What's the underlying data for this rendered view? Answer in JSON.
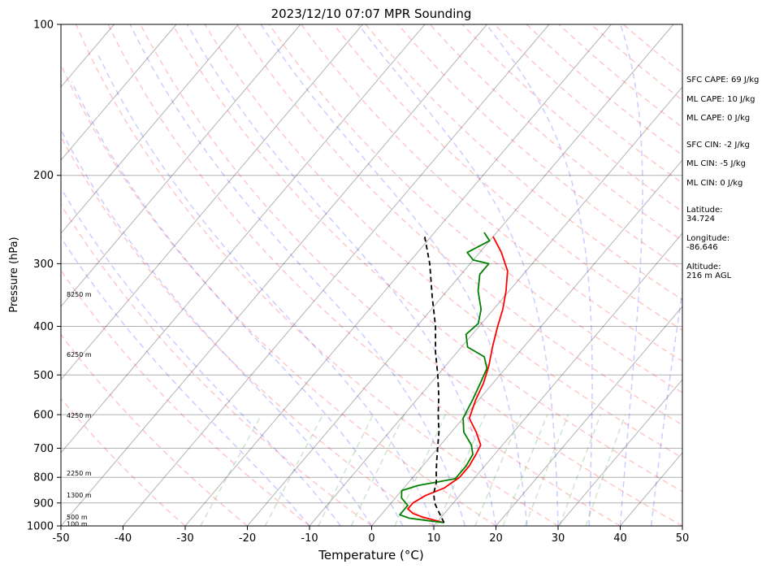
{
  "chart_data": {
    "type": "skew-t",
    "title": "2023/12/10 07:07 MPR Sounding",
    "xlabel": "Temperature (°C)",
    "ylabel": "Pressure (hPa)",
    "xlim": [
      -50,
      50
    ],
    "ylim": [
      1000,
      100
    ],
    "y_scale": "log",
    "x_ticks": [
      -50,
      -40,
      -30,
      -20,
      -10,
      0,
      10,
      20,
      30,
      40,
      50
    ],
    "y_ticks": [
      1000,
      900,
      800,
      700,
      600,
      500,
      400,
      300,
      200,
      100
    ],
    "grid": true,
    "height_labels": [
      {
        "p": 990,
        "label": "100 m"
      },
      {
        "p": 960,
        "label": "500 m"
      },
      {
        "p": 868,
        "label": "1300 m"
      },
      {
        "p": 785,
        "label": "2250 m"
      },
      {
        "p": 602,
        "label": "4250 m"
      },
      {
        "p": 455,
        "label": "6250 m"
      },
      {
        "p": 345,
        "label": "8250 m"
      }
    ],
    "series": [
      {
        "role": "temperature",
        "color": "#ff0000",
        "points": [
          [
            985,
            11.2
          ],
          [
            975,
            9.5
          ],
          [
            960,
            7
          ],
          [
            945,
            5
          ],
          [
            925,
            3.5
          ],
          [
            900,
            3.5
          ],
          [
            870,
            4.5
          ],
          [
            840,
            6.5
          ],
          [
            800,
            7.5
          ],
          [
            760,
            7.5
          ],
          [
            720,
            7
          ],
          [
            690,
            6.5
          ],
          [
            650,
            4
          ],
          [
            610,
            1
          ],
          [
            560,
            -0.5
          ],
          [
            520,
            -1.5
          ],
          [
            480,
            -3
          ],
          [
            440,
            -5
          ],
          [
            400,
            -7
          ],
          [
            370,
            -8.5
          ],
          [
            340,
            -10.5
          ],
          [
            310,
            -13
          ],
          [
            285,
            -16.5
          ],
          [
            265,
            -20
          ]
        ]
      },
      {
        "role": "dewpoint",
        "color": "#008000",
        "points": [
          [
            985,
            11.2
          ],
          [
            975,
            8
          ],
          [
            965,
            5
          ],
          [
            950,
            3
          ],
          [
            930,
            3
          ],
          [
            910,
            3
          ],
          [
            880,
            1
          ],
          [
            850,
            0
          ],
          [
            830,
            2
          ],
          [
            815,
            5
          ],
          [
            805,
            7
          ],
          [
            790,
            7
          ],
          [
            760,
            7
          ],
          [
            720,
            6.5
          ],
          [
            690,
            5
          ],
          [
            650,
            2
          ],
          [
            610,
            0
          ],
          [
            560,
            -1
          ],
          [
            520,
            -2
          ],
          [
            485,
            -3
          ],
          [
            460,
            -5
          ],
          [
            440,
            -9
          ],
          [
            415,
            -11
          ],
          [
            395,
            -10.5
          ],
          [
            370,
            -12
          ],
          [
            340,
            -15
          ],
          [
            315,
            -17
          ],
          [
            300,
            -17
          ],
          [
            295,
            -20
          ],
          [
            285,
            -22
          ],
          [
            270,
            -20
          ],
          [
            260,
            -22
          ]
        ]
      },
      {
        "role": "parcel",
        "color": "#000000",
        "style": "dashed",
        "points": [
          [
            985,
            11.2
          ],
          [
            940,
            9
          ],
          [
            900,
            7
          ],
          [
            860,
            5.5
          ],
          [
            820,
            4.5
          ],
          [
            780,
            3
          ],
          [
            740,
            1.5
          ],
          [
            700,
            0
          ],
          [
            650,
            -2
          ],
          [
            600,
            -4.5
          ],
          [
            550,
            -7
          ],
          [
            500,
            -10
          ],
          [
            450,
            -13.5
          ],
          [
            400,
            -17
          ],
          [
            350,
            -21.5
          ],
          [
            300,
            -26.5
          ],
          [
            265,
            -31
          ]
        ]
      }
    ],
    "background_lines": [
      {
        "role": "isotherms",
        "color": "#000000",
        "style": "solid"
      },
      {
        "role": "dry-adiabats",
        "color": "#ff0000",
        "style": "dashed"
      },
      {
        "role": "moist-adiabats",
        "color": "#0000ff",
        "style": "dashed"
      },
      {
        "role": "mixing-ratio",
        "color": "#008000",
        "style": "dashed"
      }
    ]
  },
  "sidebar": {
    "sfc_cape": "SFC CAPE: 69 J/kg",
    "ml_cape_1": "ML CAPE: 10 J/kg",
    "ml_cape_2": "ML CAPE: 0 J/kg",
    "sfc_cin": "SFC CIN: -2 J/kg",
    "ml_cin_1": "ML CIN: -5 J/kg",
    "ml_cin_2": "ML CIN: 0 J/kg",
    "latitude": "Latitude:\n34.724",
    "longitude": "Longitude:\n-86.646",
    "altitude": "Altitude:\n216 m AGL"
  }
}
